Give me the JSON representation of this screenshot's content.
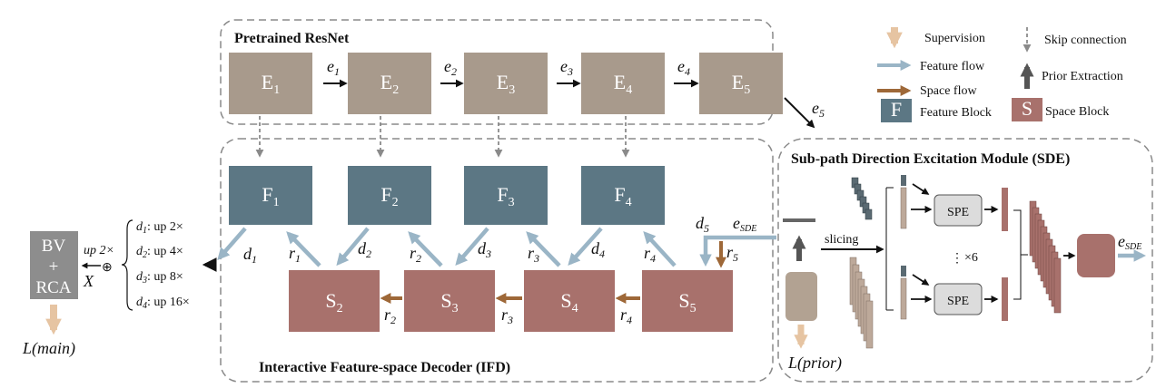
{
  "encoder": {
    "title": "Pretrained ResNet",
    "blocks": [
      {
        "label": "E",
        "sub": "1"
      },
      {
        "label": "E",
        "sub": "2"
      },
      {
        "label": "E",
        "sub": "3"
      },
      {
        "label": "E",
        "sub": "4"
      },
      {
        "label": "E",
        "sub": "5"
      }
    ],
    "edges": [
      {
        "label": "e",
        "sub": "1"
      },
      {
        "label": "e",
        "sub": "2"
      },
      {
        "label": "e",
        "sub": "3"
      },
      {
        "label": "e",
        "sub": "4"
      },
      {
        "label": "e",
        "sub": "5"
      }
    ]
  },
  "legend": {
    "supervision": "Supervision",
    "feature_flow": "Feature flow",
    "space_flow": "Space flow",
    "feature_block": "Feature Block",
    "feature_block_letter": "F",
    "skip_connection": "Skip connection",
    "prior_extraction": "Prior Extraction",
    "space_block": "Space Block",
    "space_block_letter": "S"
  },
  "decoder": {
    "title": "Interactive Feature-space Decoder (IFD)",
    "feature_blocks": [
      {
        "label": "F",
        "sub": "1"
      },
      {
        "label": "F",
        "sub": "2"
      },
      {
        "label": "F",
        "sub": "3"
      },
      {
        "label": "F",
        "sub": "4"
      }
    ],
    "space_blocks": [
      {
        "label": "S",
        "sub": "2"
      },
      {
        "label": "S",
        "sub": "3"
      },
      {
        "label": "S",
        "sub": "4"
      },
      {
        "label": "S",
        "sub": "5"
      }
    ],
    "d_labels": [
      {
        "label": "d",
        "sub": "1"
      },
      {
        "label": "d",
        "sub": "2"
      },
      {
        "label": "d",
        "sub": "3"
      },
      {
        "label": "d",
        "sub": "4"
      },
      {
        "label": "d",
        "sub": "5"
      }
    ],
    "r_up_labels": [
      {
        "label": "r",
        "sub": "1"
      },
      {
        "label": "r",
        "sub": "2"
      },
      {
        "label": "r",
        "sub": "3"
      },
      {
        "label": "r",
        "sub": "4"
      },
      {
        "label": "r",
        "sub": "5"
      }
    ],
    "r_space_labels": [
      {
        "label": "r",
        "sub": "2"
      },
      {
        "label": "r",
        "sub": "3"
      },
      {
        "label": "r",
        "sub": "4"
      }
    ],
    "e_sde": {
      "label": "e",
      "sub": "SDE"
    }
  },
  "upsample": {
    "rows": [
      {
        "d": "d",
        "sub": "1",
        "text": ": up 2×"
      },
      {
        "d": "d",
        "sub": "2",
        "text": ": up 4×"
      },
      {
        "d": "d",
        "sub": "3",
        "text": ": up 8×"
      },
      {
        "d": "d",
        "sub": "4",
        "text": ": up 16×"
      }
    ],
    "up_label": "up 2×",
    "x_label": "X",
    "oplus": "⊕"
  },
  "output": {
    "line1": "BV",
    "line2": "+",
    "line3": "RCA",
    "loss": "L(main)"
  },
  "sde": {
    "title": "Sub-path Direction Excitation Module (SDE)",
    "slicing": "slicing",
    "spe": "SPE",
    "repeat": "×6",
    "dots": "⋮",
    "loss": "L(prior)",
    "e_out": {
      "label": "e",
      "sub": "SDE"
    }
  },
  "colors": {
    "encoder": "#a89a8c",
    "feature": "#5c7784",
    "space": "#a8716c",
    "feature_flow": "#9ab5c6",
    "space_flow": "#9e6838",
    "supervision": "#e6c4a2",
    "dashed": "#8a8a8a"
  }
}
